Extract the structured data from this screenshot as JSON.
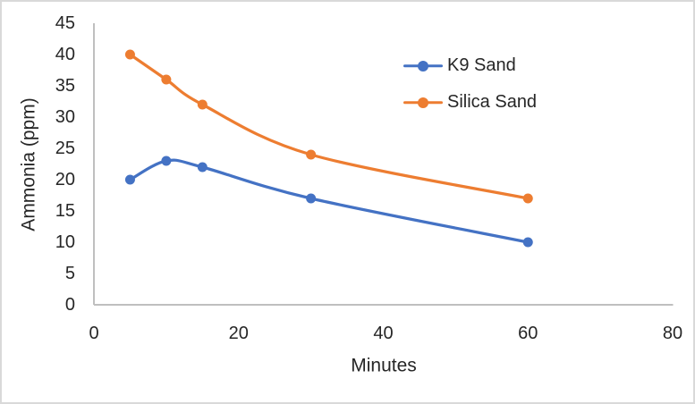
{
  "chart_data": {
    "type": "line",
    "x": [
      5,
      10,
      15,
      30,
      60
    ],
    "series": [
      {
        "name": "K9 Sand",
        "color": "#4472C4",
        "values": [
          20,
          23,
          22,
          17,
          10
        ]
      },
      {
        "name": "Silica Sand",
        "color": "#ED7D31",
        "values": [
          40,
          36,
          32,
          24,
          17
        ]
      }
    ],
    "title": "",
    "xlabel": "Minutes",
    "ylabel": "Ammonia (ppm)",
    "xlim": [
      0,
      80
    ],
    "ylim": [
      0,
      45
    ],
    "xticks": [
      0,
      20,
      40,
      60,
      80
    ],
    "yticks": [
      0,
      5,
      10,
      15,
      20,
      25,
      30,
      35,
      40,
      45
    ],
    "grid": false,
    "smooth": true,
    "marker": "circle",
    "legend_position": "upper-right-inside",
    "axis_color": "#BFBFBF",
    "text_color": "#262626"
  }
}
